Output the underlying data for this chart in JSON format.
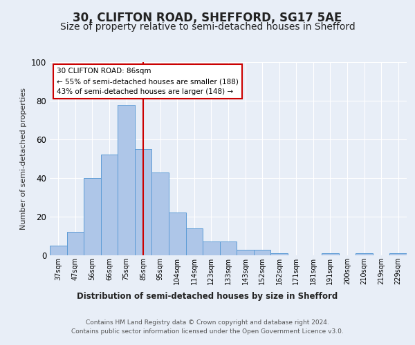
{
  "title": "30, CLIFTON ROAD, SHEFFORD, SG17 5AE",
  "subtitle": "Size of property relative to semi-detached houses in Shefford",
  "xlabel": "Distribution of semi-detached houses by size in Shefford",
  "ylabel": "Number of semi-detached properties",
  "categories": [
    "37sqm",
    "47sqm",
    "56sqm",
    "66sqm",
    "75sqm",
    "85sqm",
    "95sqm",
    "104sqm",
    "114sqm",
    "123sqm",
    "133sqm",
    "143sqm",
    "152sqm",
    "162sqm",
    "171sqm",
    "181sqm",
    "191sqm",
    "200sqm",
    "210sqm",
    "219sqm",
    "229sqm"
  ],
  "values": [
    5,
    12,
    40,
    52,
    78,
    55,
    43,
    22,
    14,
    7,
    7,
    3,
    3,
    1,
    0,
    0,
    1,
    0,
    1,
    0,
    1
  ],
  "bar_color": "#aec6e8",
  "bar_edge_color": "#5b9bd5",
  "vline_color": "#cc0000",
  "vline_x": 5,
  "annotation_title": "30 CLIFTON ROAD: 86sqm",
  "annotation_line1": "← 55% of semi-detached houses are smaller (188)",
  "annotation_line2": "43% of semi-detached houses are larger (148) →",
  "annotation_box_color": "#ffffff",
  "annotation_box_edge": "#cc0000",
  "ylim": [
    0,
    100
  ],
  "footer1": "Contains HM Land Registry data © Crown copyright and database right 2024.",
  "footer2": "Contains public sector information licensed under the Open Government Licence v3.0.",
  "background_color": "#e8eef7",
  "plot_background": "#e8eef7",
  "grid_color": "#ffffff",
  "title_fontsize": 12,
  "subtitle_fontsize": 10
}
